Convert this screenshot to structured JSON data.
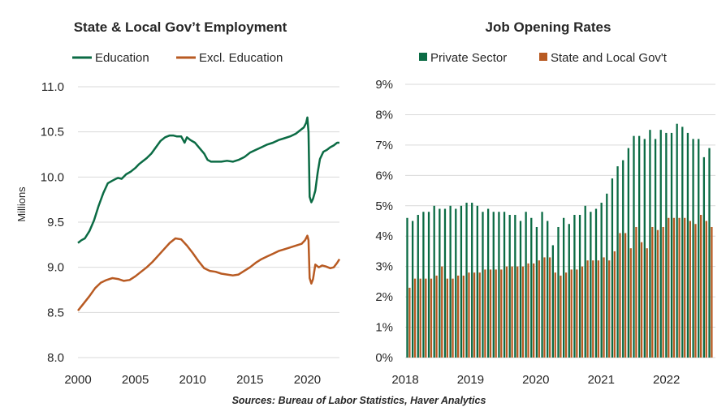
{
  "source": "Sources: Bureau of Labor Statistics, Haver Analytics",
  "colors": {
    "green": "#0b6b44",
    "orange": "#b85a22",
    "grid": "#d9d9d9"
  },
  "chart_data": [
    {
      "type": "line",
      "title": "State & Local Gov’t Employment",
      "ylabel": "Millions",
      "xlim": [
        2000,
        2022.8
      ],
      "ylim": [
        8.0,
        11.0
      ],
      "xticks": [
        2000,
        2005,
        2010,
        2015,
        2020
      ],
      "xtick_labels": [
        "2000",
        "2005",
        "2010",
        "2015",
        "2020"
      ],
      "yticks": [
        8.0,
        8.5,
        9.0,
        9.5,
        10.0,
        10.5,
        11.0
      ],
      "ytick_labels": [
        "8.0",
        "8.5",
        "9.0",
        "9.5",
        "10.0",
        "10.5",
        "11.0"
      ],
      "grid": "horizontal",
      "legend": "top",
      "series": [
        {
          "name": "Education",
          "color": "#0b6b44",
          "x": [
            2000.0,
            2000.3,
            2000.6,
            2001.0,
            2001.4,
            2001.8,
            2002.2,
            2002.6,
            2003.0,
            2003.3,
            2003.5,
            2003.8,
            2004.2,
            2004.6,
            2005.0,
            2005.3,
            2005.6,
            2006.0,
            2006.4,
            2006.8,
            2007.2,
            2007.6,
            2008.0,
            2008.3,
            2008.6,
            2009.0,
            2009.3,
            2009.5,
            2009.8,
            2010.2,
            2010.6,
            2011.0,
            2011.3,
            2011.6,
            2012.0,
            2012.5,
            2013.0,
            2013.5,
            2014.0,
            2014.5,
            2015.0,
            2015.5,
            2016.0,
            2016.5,
            2017.0,
            2017.5,
            2018.0,
            2018.5,
            2019.0,
            2019.4,
            2019.7,
            2019.9,
            2020.0,
            2020.1,
            2020.2,
            2020.35,
            2020.5,
            2020.7,
            2020.9,
            2021.1,
            2021.4,
            2021.7,
            2022.0,
            2022.3,
            2022.6,
            2022.8
          ],
          "values": [
            9.27,
            9.3,
            9.32,
            9.4,
            9.52,
            9.68,
            9.82,
            9.93,
            9.96,
            9.98,
            9.99,
            9.98,
            10.03,
            10.06,
            10.1,
            10.14,
            10.17,
            10.21,
            10.26,
            10.33,
            10.4,
            10.44,
            10.46,
            10.46,
            10.45,
            10.45,
            10.38,
            10.44,
            10.41,
            10.38,
            10.32,
            10.26,
            10.19,
            10.17,
            10.17,
            10.17,
            10.18,
            10.17,
            10.19,
            10.22,
            10.27,
            10.3,
            10.33,
            10.36,
            10.38,
            10.41,
            10.43,
            10.45,
            10.48,
            10.52,
            10.55,
            10.6,
            10.66,
            10.5,
            9.78,
            9.72,
            9.76,
            9.85,
            10.05,
            10.2,
            10.28,
            10.3,
            10.33,
            10.35,
            10.38,
            10.38
          ]
        },
        {
          "name": "Excl. Education",
          "color": "#b85a22",
          "x": [
            2000.0,
            2000.5,
            2001.0,
            2001.5,
            2002.0,
            2002.5,
            2003.0,
            2003.5,
            2004.0,
            2004.5,
            2005.0,
            2005.5,
            2006.0,
            2006.5,
            2007.0,
            2007.5,
            2008.0,
            2008.5,
            2009.0,
            2009.5,
            2010.0,
            2010.5,
            2011.0,
            2011.5,
            2012.0,
            2012.5,
            2013.0,
            2013.5,
            2014.0,
            2014.5,
            2015.0,
            2015.5,
            2016.0,
            2016.5,
            2017.0,
            2017.5,
            2018.0,
            2018.5,
            2019.0,
            2019.5,
            2019.8,
            2020.0,
            2020.1,
            2020.2,
            2020.35,
            2020.5,
            2020.7,
            2021.0,
            2021.3,
            2021.6,
            2022.0,
            2022.3,
            2022.6,
            2022.8
          ],
          "values": [
            8.52,
            8.6,
            8.68,
            8.77,
            8.83,
            8.86,
            8.88,
            8.87,
            8.85,
            8.86,
            8.9,
            8.95,
            9.0,
            9.06,
            9.13,
            9.2,
            9.27,
            9.32,
            9.31,
            9.24,
            9.16,
            9.07,
            8.99,
            8.96,
            8.95,
            8.93,
            8.92,
            8.91,
            8.92,
            8.96,
            9.0,
            9.05,
            9.09,
            9.12,
            9.15,
            9.18,
            9.2,
            9.22,
            9.24,
            9.26,
            9.3,
            9.35,
            9.3,
            8.88,
            8.82,
            8.87,
            9.03,
            9.0,
            9.02,
            9.01,
            8.99,
            9.0,
            9.05,
            9.09
          ]
        }
      ]
    },
    {
      "type": "bar",
      "title": "Job Opening Rates",
      "xlim": [
        2018,
        2022.75
      ],
      "ylim": [
        0,
        9
      ],
      "xticks": [
        2018,
        2019,
        2020,
        2021,
        2022
      ],
      "xtick_labels": [
        "2018",
        "2019",
        "2020",
        "2021",
        "2022"
      ],
      "yticks": [
        0,
        1,
        2,
        3,
        4,
        5,
        6,
        7,
        8,
        9
      ],
      "ytick_labels": [
        "0%",
        "1%",
        "2%",
        "3%",
        "4%",
        "5%",
        "6%",
        "7%",
        "8%",
        "9%"
      ],
      "grid": "horizontal",
      "legend": "top",
      "categories": [
        "Jan 2018",
        "Feb 2018",
        "Mar 2018",
        "Apr 2018",
        "May 2018",
        "Jun 2018",
        "Jul 2018",
        "Aug 2018",
        "Sep 2018",
        "Oct 2018",
        "Nov 2018",
        "Dec 2018",
        "Jan 2019",
        "Feb 2019",
        "Mar 2019",
        "Apr 2019",
        "May 2019",
        "Jun 2019",
        "Jul 2019",
        "Aug 2019",
        "Sep 2019",
        "Oct 2019",
        "Nov 2019",
        "Dec 2019",
        "Jan 2020",
        "Feb 2020",
        "Mar 2020",
        "Apr 2020",
        "May 2020",
        "Jun 2020",
        "Jul 2020",
        "Aug 2020",
        "Sep 2020",
        "Oct 2020",
        "Nov 2020",
        "Dec 2020",
        "Jan 2021",
        "Feb 2021",
        "Mar 2021",
        "Apr 2021",
        "May 2021",
        "Jun 2021",
        "Jul 2021",
        "Aug 2021",
        "Sep 2021",
        "Oct 2021",
        "Nov 2021",
        "Dec 2021",
        "Jan 2022",
        "Feb 2022",
        "Mar 2022",
        "Apr 2022",
        "May 2022",
        "Jun 2022",
        "Jul 2022",
        "Aug 2022",
        "Sep 2022"
      ],
      "series": [
        {
          "name": "Private Sector",
          "color": "#0b6b44",
          "values": [
            4.6,
            4.5,
            4.7,
            4.8,
            4.8,
            5.0,
            4.9,
            4.9,
            5.0,
            4.9,
            5.0,
            5.1,
            5.1,
            5.0,
            4.8,
            4.9,
            4.8,
            4.8,
            4.8,
            4.7,
            4.7,
            4.5,
            4.8,
            4.6,
            4.3,
            4.8,
            4.5,
            3.7,
            4.3,
            4.6,
            4.4,
            4.7,
            4.7,
            5.0,
            4.8,
            4.9,
            5.1,
            5.4,
            5.9,
            6.3,
            6.5,
            6.9,
            7.3,
            7.3,
            7.2,
            7.5,
            7.2,
            7.5,
            7.4,
            7.4,
            7.7,
            7.6,
            7.4,
            7.2,
            7.2,
            6.6,
            6.9
          ]
        },
        {
          "name": "State and Local Gov't",
          "color": "#b85a22",
          "values": [
            2.3,
            2.6,
            2.6,
            2.6,
            2.6,
            2.7,
            3.0,
            2.6,
            2.6,
            2.7,
            2.7,
            2.8,
            2.8,
            2.8,
            2.9,
            2.9,
            2.9,
            2.9,
            3.0,
            3.0,
            3.0,
            3.0,
            3.1,
            3.1,
            3.2,
            3.3,
            3.3,
            2.8,
            2.7,
            2.8,
            2.9,
            2.9,
            3.0,
            3.2,
            3.2,
            3.2,
            3.3,
            3.2,
            3.5,
            4.1,
            4.1,
            3.6,
            4.3,
            3.8,
            3.6,
            4.3,
            4.2,
            4.3,
            4.6,
            4.6,
            4.6,
            4.6,
            4.5,
            4.4,
            4.7,
            4.5,
            4.3
          ]
        }
      ]
    }
  ]
}
